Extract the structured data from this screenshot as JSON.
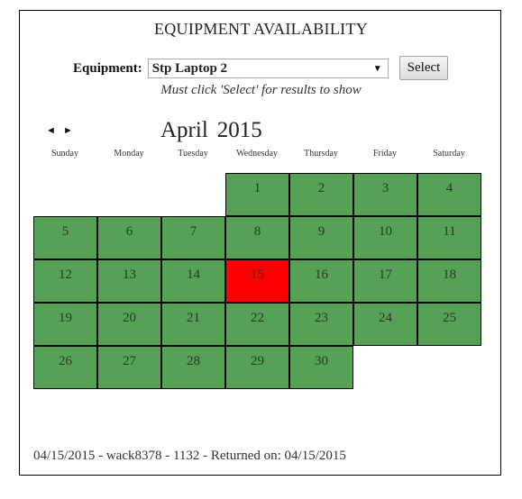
{
  "title": "EQUIPMENT AVAILABILITY",
  "equipment": {
    "label": "Equipment:",
    "selected": "Stp Laptop 2",
    "select_button": "Select"
  },
  "note": "Must click 'Select' for results to show",
  "calendar": {
    "prev_icon": "◄",
    "next_icon": "►",
    "month": "April",
    "year": "2015",
    "weekdays": [
      "Sunday",
      "Monday",
      "Tuesday",
      "Wednesday",
      "Thursday",
      "Friday",
      "Saturday"
    ],
    "start_weekday": 3,
    "days_in_month": 30,
    "highlight_day": 15,
    "colors": {
      "available": "#55a155",
      "highlight": "#ff0000"
    }
  },
  "result_line": "04/15/2015 - wack8378 - 1132 - Returned on: 04/15/2015"
}
